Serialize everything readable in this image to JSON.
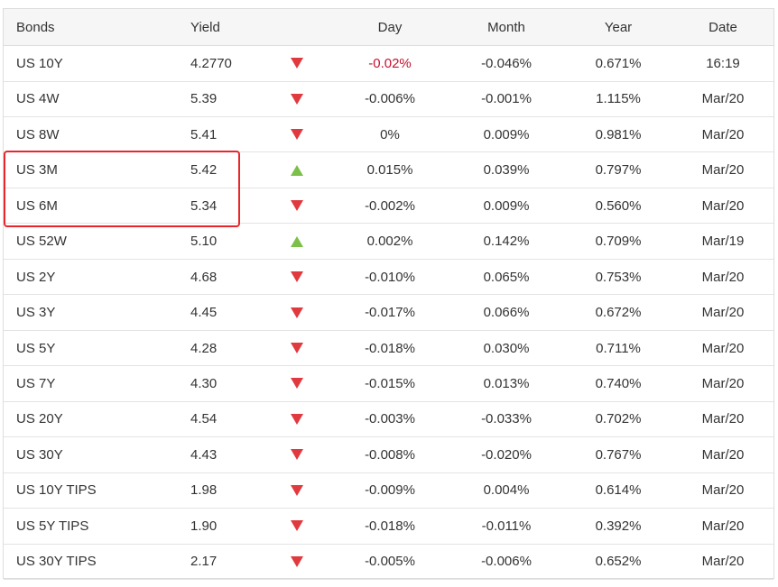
{
  "table": {
    "header": [
      "Bonds",
      "Yield",
      "Day",
      "Month",
      "Year",
      "Date"
    ],
    "rows": [
      [
        "US 10Y",
        "4.2770",
        "-0.02%",
        "-0.046%",
        "0.671%",
        "16:19"
      ],
      [
        "US 4W",
        "5.39",
        "-0.006%",
        "-0.001%",
        "1.115%",
        "Mar/20"
      ],
      [
        "US 8W",
        "5.41",
        "0%",
        "0.009%",
        "0.981%",
        "Mar/20"
      ],
      [
        "US 3M",
        "5.42",
        "0.015%",
        "0.039%",
        "0.797%",
        "Mar/20"
      ],
      [
        "US 6M",
        "5.34",
        "-0.002%",
        "0.009%",
        "0.560%",
        "Mar/20"
      ],
      [
        "US 52W",
        "5.10",
        "0.002%",
        "0.142%",
        "0.709%",
        "Mar/19"
      ],
      [
        "US 2Y",
        "4.68",
        "-0.010%",
        "0.065%",
        "0.753%",
        "Mar/20"
      ],
      [
        "US 3Y",
        "4.45",
        "-0.017%",
        "0.066%",
        "0.672%",
        "Mar/20"
      ],
      [
        "US 5Y",
        "4.28",
        "-0.018%",
        "0.030%",
        "0.711%",
        "Mar/20"
      ],
      [
        "US 7Y",
        "4.30",
        "-0.015%",
        "0.013%",
        "0.740%",
        "Mar/20"
      ],
      [
        "US 20Y",
        "4.54",
        "-0.003%",
        "-0.033%",
        "0.702%",
        "Mar/20"
      ],
      [
        "US 30Y",
        "4.43",
        "-0.008%",
        "-0.020%",
        "0.767%",
        "Mar/20"
      ],
      [
        "US 10Y TIPS",
        "1.98",
        "-0.009%",
        "0.004%",
        "0.614%",
        "Mar/20"
      ],
      [
        "US 5Y TIPS",
        "1.90",
        "-0.018%",
        "-0.011%",
        "0.392%",
        "Mar/20"
      ],
      [
        "US 30Y TIPS",
        "2.17",
        "-0.005%",
        "-0.006%",
        "0.652%",
        "Mar/20"
      ]
    ]
  }
}
